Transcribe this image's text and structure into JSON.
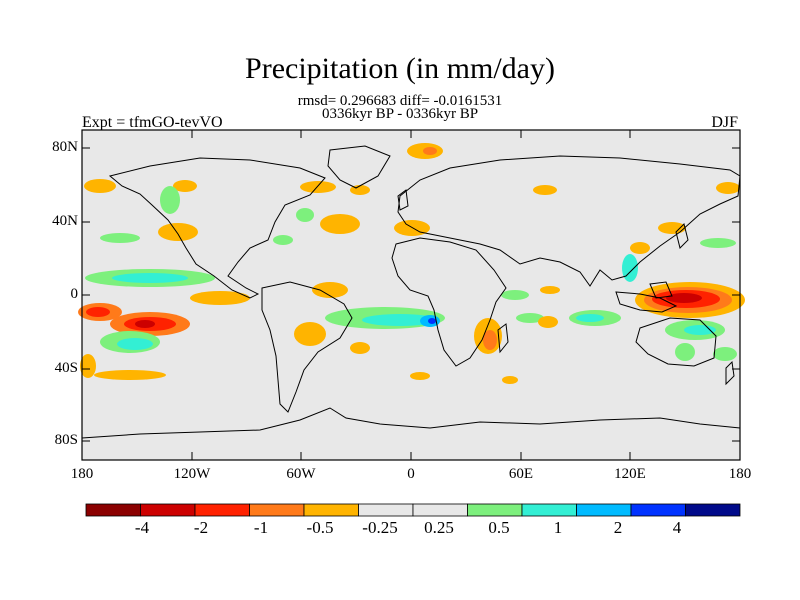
{
  "header": {
    "title": "Precipitation (in mm/day)",
    "stats": "rmsd= 0.296683 diff= -0.0161531",
    "period": "0336kyr BP - 0336kyr BP",
    "experiment": "Expt = tfmGO-tevVO",
    "season": "DJF"
  },
  "axes": {
    "lat_ticks": [
      "80N",
      "40N",
      "0",
      "40S",
      "80S"
    ],
    "lon_ticks": [
      "180",
      "120W",
      "60W",
      "0",
      "60E",
      "120E",
      "180"
    ]
  },
  "colorbar": {
    "colors": [
      "#8b0000",
      "#cc0000",
      "#ff2200",
      "#ff7a1a",
      "#ffb400",
      "#e8e8e8",
      "#e8e8e8",
      "#7df07d",
      "#33efd4",
      "#00bbff",
      "#0033ff",
      "#000a8a"
    ],
    "labels": [
      "-4",
      "-2",
      "-1",
      "-0.5",
      "-0.25",
      "0.25",
      "0.5",
      "1",
      "2",
      "4"
    ]
  },
  "colors": {
    "land_neutral": "#e8e8e8",
    "coastline": "#000000"
  }
}
